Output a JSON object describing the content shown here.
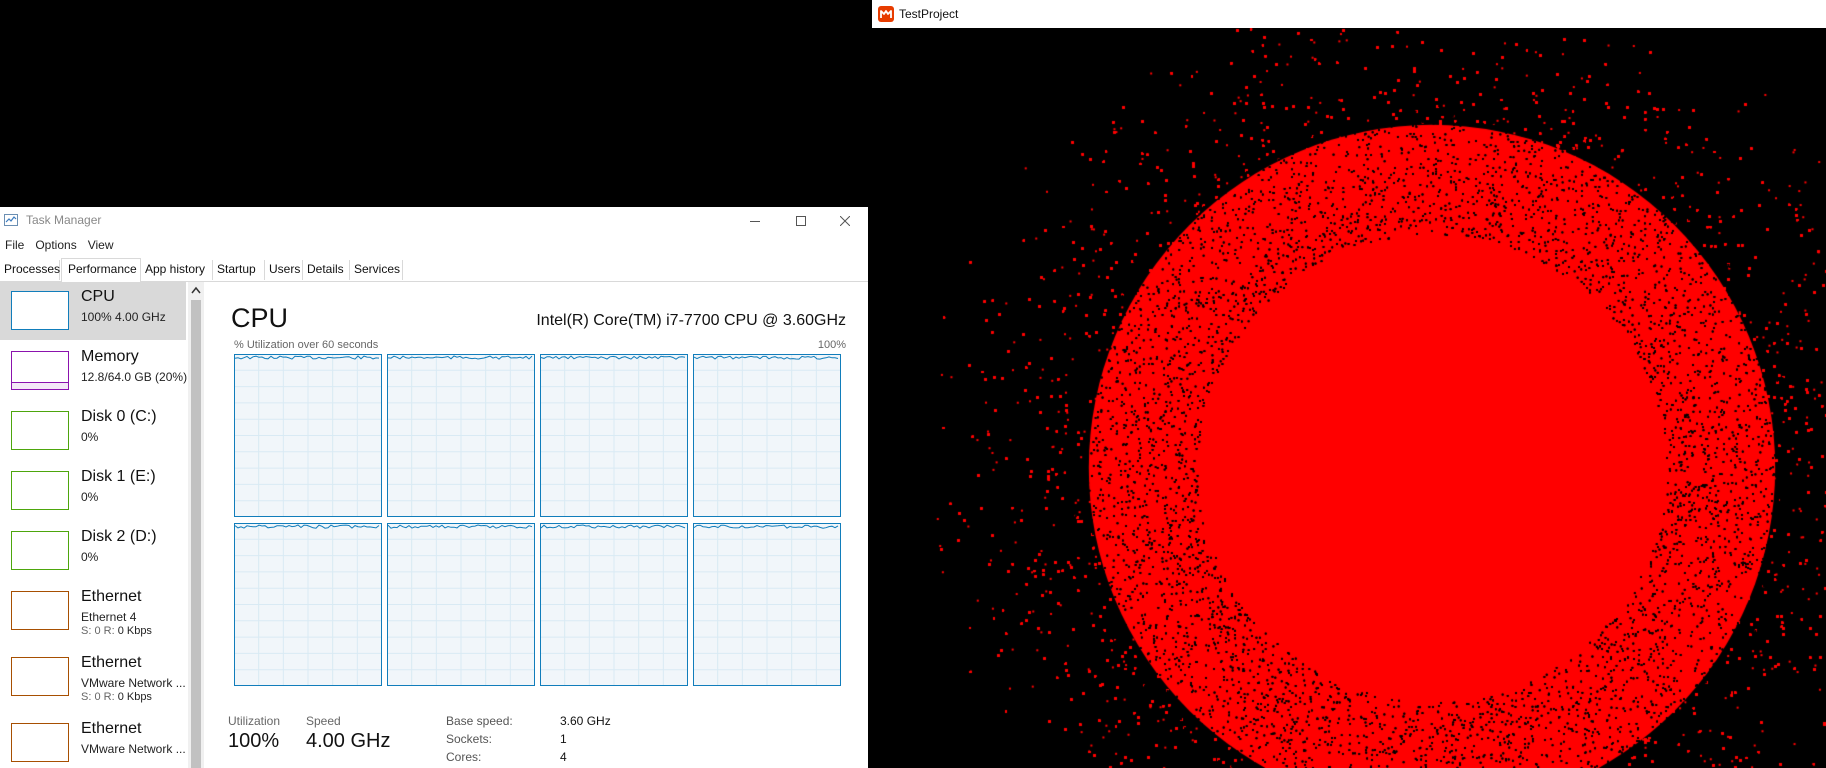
{
  "task_manager": {
    "window_title": "Task Manager",
    "menu": [
      "File",
      "Options",
      "View"
    ],
    "tabs": [
      "Processes",
      "Performance",
      "App history",
      "Startup",
      "Users",
      "Details",
      "Services"
    ],
    "active_tab": "Performance",
    "resources": [
      {
        "name": "CPU",
        "sub": "100%  4.00 GHz",
        "color": "#117dbb",
        "selected": true
      },
      {
        "name": "Memory",
        "sub": "12.8/64.0 GB (20%)",
        "color": "#8b12ae"
      },
      {
        "name": "Disk 0 (C:)",
        "sub": "0%",
        "color": "#4da60c"
      },
      {
        "name": "Disk 1 (E:)",
        "sub": "0%",
        "color": "#4da60c"
      },
      {
        "name": "Disk 2 (D:)",
        "sub": "0%",
        "color": "#4da60c"
      },
      {
        "name": "Ethernet",
        "sub": "Ethernet 4",
        "sub2_label": "S: 0 R: ",
        "sub2_value": "0 Kbps",
        "color": "#a74f01"
      },
      {
        "name": "Ethernet",
        "sub": "VMware Network ...",
        "sub2_label": "S: 0 R: ",
        "sub2_value": "0 Kbps",
        "color": "#a74f01"
      },
      {
        "name": "Ethernet",
        "sub": "VMware Network ...",
        "color": "#a74f01"
      }
    ],
    "cpu": {
      "title": "CPU",
      "model": "Intel(R) Core(TM) i7-7700 CPU @ 3.60GHz",
      "graph_label": "% Utilization over 60 seconds",
      "graph_max": "100%",
      "core_count": 8,
      "core_utilization_percent": 100,
      "utilization_label": "Utilization",
      "utilization_value": "100%",
      "speed_label": "Speed",
      "speed_value": "4.00 GHz",
      "details": [
        {
          "label": "Base speed:",
          "value": "3.60 GHz"
        },
        {
          "label": "Sockets:",
          "value": "1"
        },
        {
          "label": "Cores:",
          "value": "4"
        }
      ]
    }
  },
  "test_project": {
    "window_title": "TestProject"
  },
  "colors": {
    "cpu_accent": "#117dbb",
    "graph_fill": "#f1f6fa",
    "graph_grid": "#d9eaf4",
    "canvas_dots": "#ff0000"
  }
}
